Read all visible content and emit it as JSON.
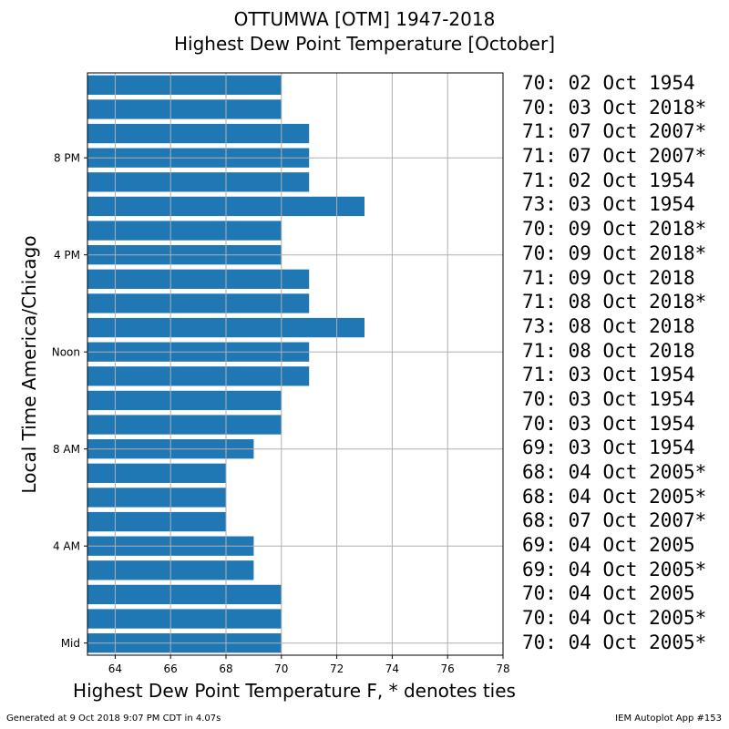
{
  "title": {
    "line1": "OTTUMWA [OTM] 1947-2018",
    "line2": "Highest Dew Point Temperature [October]"
  },
  "footer": {
    "left": "Generated at 9 Oct 2018 9:07 PM CDT in 4.07s",
    "right": "IEM Autoplot App #153"
  },
  "chart_data": {
    "type": "bar",
    "orientation": "horizontal",
    "title": "OTTUMWA [OTM] 1947-2018 Highest Dew Point Temperature [October]",
    "xlabel": "Highest Dew Point Temperature F, * denotes ties",
    "ylabel": "Local Time America/Chicago",
    "xlim": [
      63,
      78
    ],
    "xticks": [
      64,
      66,
      68,
      70,
      72,
      74,
      76,
      78
    ],
    "yticks": [
      {
        "hour": 0,
        "label": "Mid"
      },
      {
        "hour": 4,
        "label": "4 AM"
      },
      {
        "hour": 8,
        "label": "8 AM"
      },
      {
        "hour": 12,
        "label": "Noon"
      },
      {
        "hour": 16,
        "label": "4 PM"
      },
      {
        "hour": 20,
        "label": "8 PM"
      }
    ],
    "grid": true,
    "bar_color": "#1f77b4",
    "hours": [
      0,
      1,
      2,
      3,
      4,
      5,
      6,
      7,
      8,
      9,
      10,
      11,
      12,
      13,
      14,
      15,
      16,
      17,
      18,
      19,
      20,
      21,
      22,
      23
    ],
    "values": [
      70,
      70,
      70,
      69,
      69,
      68,
      68,
      68,
      69,
      70,
      70,
      71,
      71,
      73,
      71,
      71,
      70,
      70,
      73,
      71,
      71,
      71,
      70,
      70
    ],
    "record_labels": [
      "70: 04 Oct 2005*",
      "70: 04 Oct 2005*",
      "70: 04 Oct 2005",
      "69: 04 Oct 2005*",
      "69: 04 Oct 2005",
      "68: 07 Oct 2007*",
      "68: 04 Oct 2005*",
      "68: 04 Oct 2005*",
      "69: 03 Oct 1954",
      "70: 03 Oct 1954",
      "70: 03 Oct 1954",
      "71: 03 Oct 1954",
      "71: 08 Oct 2018",
      "73: 08 Oct 2018",
      "71: 08 Oct 2018*",
      "71: 09 Oct 2018",
      "70: 09 Oct 2018*",
      "70: 09 Oct 2018*",
      "73: 03 Oct 1954",
      "71: 02 Oct 1954",
      "71: 07 Oct 2007*",
      "71: 07 Oct 2007*",
      "70: 03 Oct 2018*",
      "70: 02 Oct 1954"
    ]
  }
}
